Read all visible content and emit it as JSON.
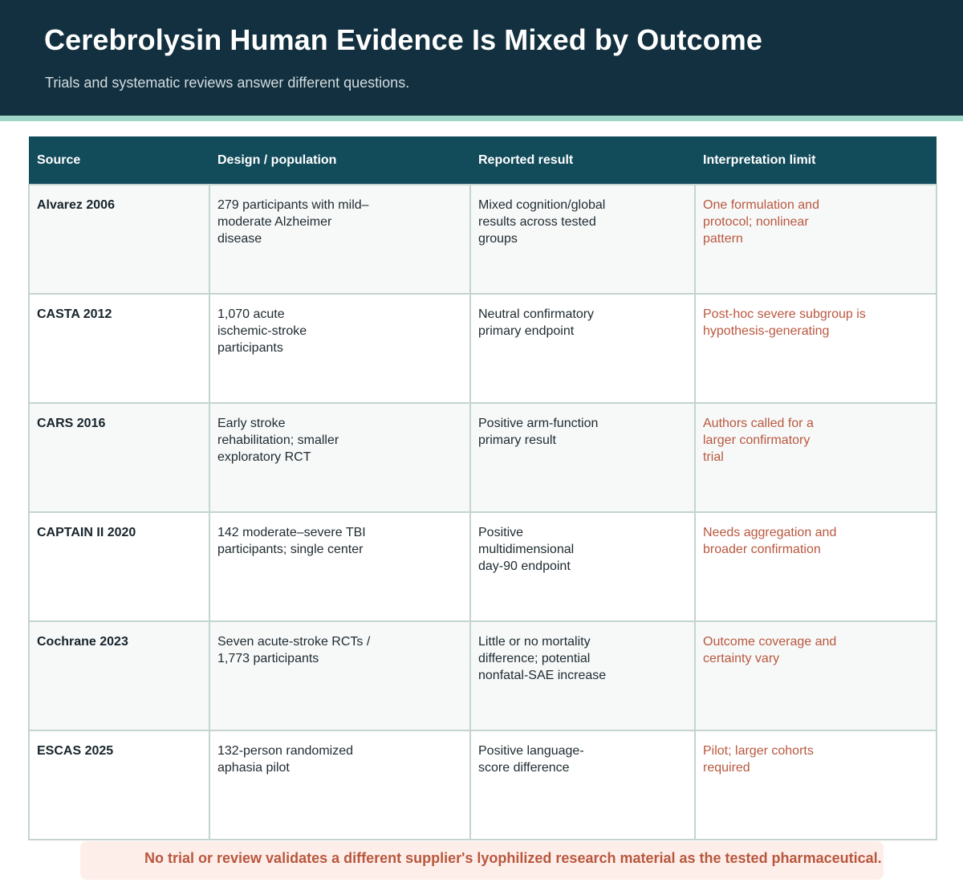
{
  "header": {
    "title": "Cerebrolysin Human Evidence Is Mixed by Outcome",
    "subtitle": "Trials and systematic reviews answer different questions."
  },
  "table": {
    "columns": [
      "Source",
      "Design / population",
      "Reported result",
      "Interpretation limit"
    ],
    "rows": [
      {
        "source": "Alvarez 2006",
        "design": "279 participants with mild–moderate Alzheimer disease",
        "result": "Mixed cognition/global results across tested groups",
        "limit": "One formulation and protocol; nonlinear pattern"
      },
      {
        "source": "CASTA 2012",
        "design": "1,070 acute ischemic-stroke participants",
        "result": "Neutral confirmatory primary endpoint",
        "limit": "Post-hoc severe subgroup is hypothesis-generating"
      },
      {
        "source": "CARS 2016",
        "design": "Early stroke rehabilitation; smaller exploratory RCT",
        "result": "Positive arm-function primary result",
        "limit": "Authors called for a larger confirmatory trial"
      },
      {
        "source": "CAPTAIN II 2020",
        "design": "142 moderate–severe TBI participants; single center",
        "result": "Positive multidimensional day-90 endpoint",
        "limit": "Needs aggregation and broader confirmation"
      },
      {
        "source": "Cochrane 2023",
        "design": "Seven acute-stroke RCTs / 1,773 participants",
        "result": "Little or no mortality difference; potential nonfatal-SAE increase",
        "limit": "Outcome coverage and certainty vary"
      },
      {
        "source": "ESCAS 2025",
        "design": "132-person randomized aphasia pilot",
        "result": "Positive language-score difference",
        "limit": "Pilot; larger cohorts required"
      }
    ]
  },
  "footer": {
    "note": "No trial or review validates a different supplier's lyophilized research material as the tested pharmaceutical."
  },
  "colors": {
    "header_bg": "#12303f",
    "header_accent": "#9fd5c6",
    "table_header_bg": "#124b5a",
    "limit_text": "#b9573e",
    "note_bg": "#fdeee9"
  }
}
